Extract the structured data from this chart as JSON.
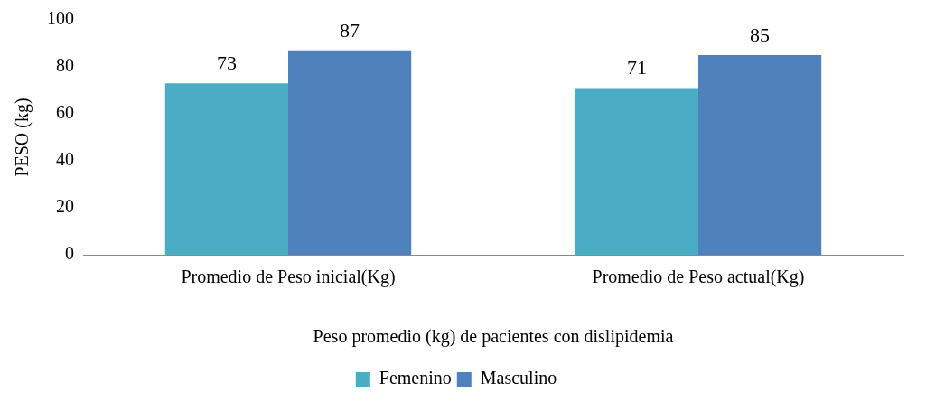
{
  "chart_data": {
    "type": "bar",
    "categories": [
      "Promedio de Peso inicial(Kg)",
      "Promedio de Peso actual(Kg)"
    ],
    "series": [
      {
        "name": "Femenino",
        "color": "#4bacc6",
        "values": [
          73,
          71
        ]
      },
      {
        "name": "Masculino",
        "color": "#4f81bd",
        "values": [
          87,
          85
        ]
      }
    ],
    "xlabel": "Peso promedio (kg) de pacientes con dislipidemia",
    "ylabel": "PESO (kg)",
    "ylim": [
      0,
      100
    ],
    "yticks": [
      0,
      20,
      40,
      60,
      80,
      100
    ],
    "grid": false,
    "legend": "bottom",
    "data_labels": true
  }
}
